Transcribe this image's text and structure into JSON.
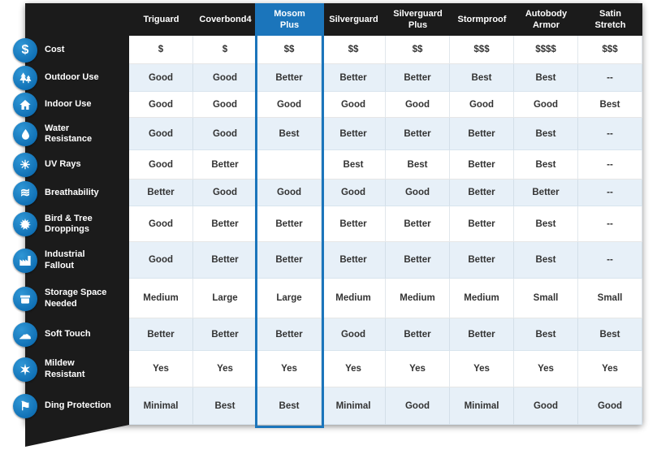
{
  "chart_data": {
    "type": "table",
    "columns": [
      "Triguard",
      "Coverbond4",
      "Mosom Plus",
      "Silverguard",
      "Silverguard Plus",
      "Stormproof",
      "Autobody Armor",
      "Satin Stretch"
    ],
    "highlighted_column": "Mosom Plus",
    "rows": [
      {
        "label": "Cost",
        "icon": "dollar-icon",
        "values": [
          "$",
          "$",
          "$$",
          "$$",
          "$$",
          "$$$",
          "$$$$",
          "$$$"
        ]
      },
      {
        "label": "Outdoor Use",
        "icon": "pine-trees-icon",
        "values": [
          "Good",
          "Good",
          "Better",
          "Better",
          "Better",
          "Best",
          "Best",
          "--"
        ]
      },
      {
        "label": "Indoor Use",
        "icon": "house-icon",
        "values": [
          "Good",
          "Good",
          "Good",
          "Good",
          "Good",
          "Good",
          "Good",
          "Best"
        ]
      },
      {
        "label": "Water Resistance",
        "icon": "water-droplet-icon",
        "values": [
          "Good",
          "Good",
          "Best",
          "Better",
          "Better",
          "Better",
          "Best",
          "--"
        ]
      },
      {
        "label": "UV Rays",
        "icon": "sun-icon",
        "values": [
          "Good",
          "Better",
          "",
          "Best",
          "Best",
          "Better",
          "Best",
          "--"
        ]
      },
      {
        "label": "Breathability",
        "icon": "airflow-icon",
        "values": [
          "Better",
          "Good",
          "Good",
          "Good",
          "Good",
          "Better",
          "Better",
          "--"
        ]
      },
      {
        "label": "Bird & Tree Droppings",
        "icon": "maple-leaf-icon",
        "values": [
          "Good",
          "Better",
          "Better",
          "Better",
          "Better",
          "Better",
          "Best",
          "--"
        ]
      },
      {
        "label": "Industrial Fallout",
        "icon": "factory-icon",
        "values": [
          "Good",
          "Better",
          "Better",
          "Better",
          "Better",
          "Better",
          "Best",
          "--"
        ]
      },
      {
        "label": "Storage Space Needed",
        "icon": "storage-box-icon",
        "values": [
          "Medium",
          "Large",
          "Large",
          "Medium",
          "Medium",
          "Medium",
          "Small",
          "Small"
        ]
      },
      {
        "label": "Soft Touch",
        "icon": "cloud-icon",
        "values": [
          "Better",
          "Better",
          "Better",
          "Good",
          "Better",
          "Better",
          "Best",
          "Best"
        ]
      },
      {
        "label": "Mildew Resistant",
        "icon": "starburst-icon",
        "values": [
          "Yes",
          "Yes",
          "Yes",
          "Yes",
          "Yes",
          "Yes",
          "Yes",
          "Yes"
        ]
      },
      {
        "label": "Ding Protection",
        "icon": "flag-icon",
        "values": [
          "Minimal",
          "Best",
          "Best",
          "Minimal",
          "Good",
          "Minimal",
          "Good",
          "Good"
        ]
      }
    ]
  },
  "colors": {
    "accent": "#1b75bb",
    "header_bg": "#1b1b1b",
    "row_alt_bg": "#e7f0f8",
    "icon_blue": "#1486c7"
  }
}
